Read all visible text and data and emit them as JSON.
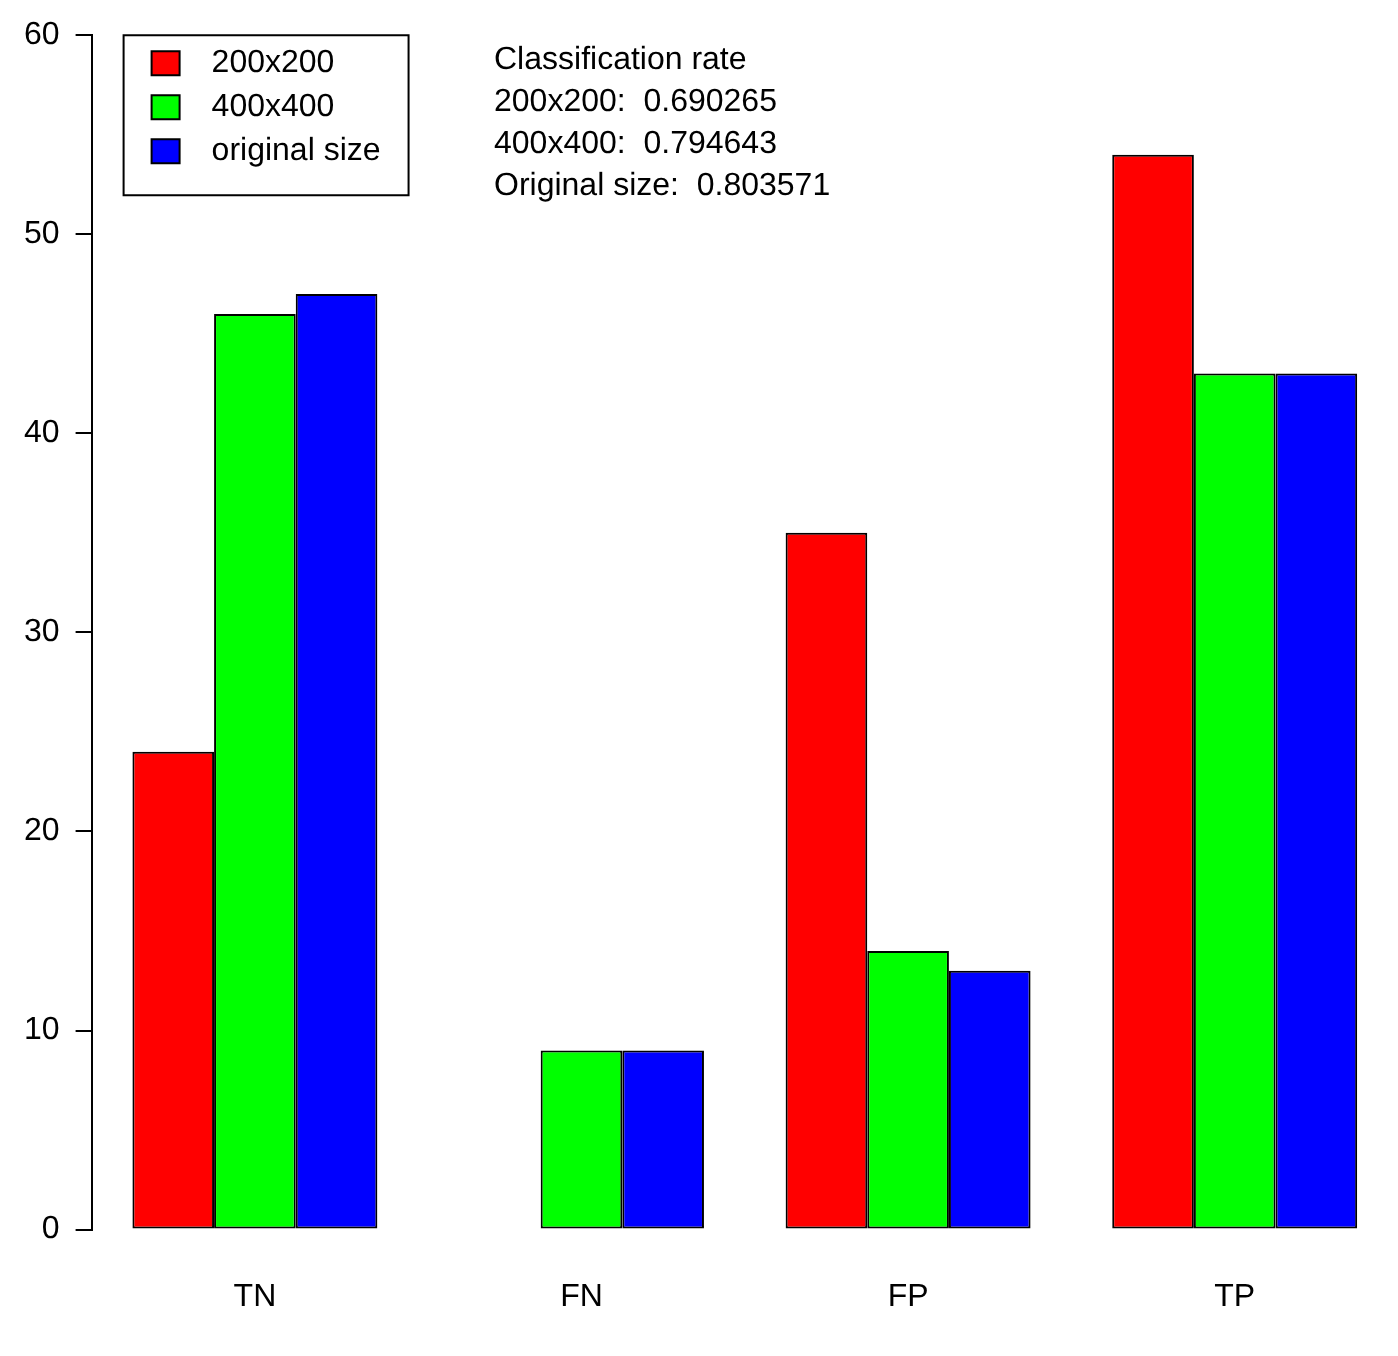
{
  "chart_data": {
    "type": "bar",
    "categories": [
      "TN",
      "FN",
      "FP",
      "TP"
    ],
    "series": [
      {
        "name": "200x200",
        "color": "#ff0000",
        "values": [
          24,
          0,
          35,
          54
        ]
      },
      {
        "name": "400x400",
        "color": "#00ff00",
        "values": [
          46,
          9,
          14,
          43
        ]
      },
      {
        "name": "original size",
        "color": "#0000ff",
        "values": [
          47,
          9,
          13,
          43
        ]
      }
    ],
    "ylim": [
      0,
      60
    ],
    "yticks": [
      0,
      10,
      20,
      30,
      40,
      50,
      60
    ],
    "grid": false,
    "legend": "top left",
    "annotations": [
      "Classification rate",
      "200x200:  0.690265",
      "400x400:  0.794643",
      "Original size:  0.803571"
    ]
  }
}
